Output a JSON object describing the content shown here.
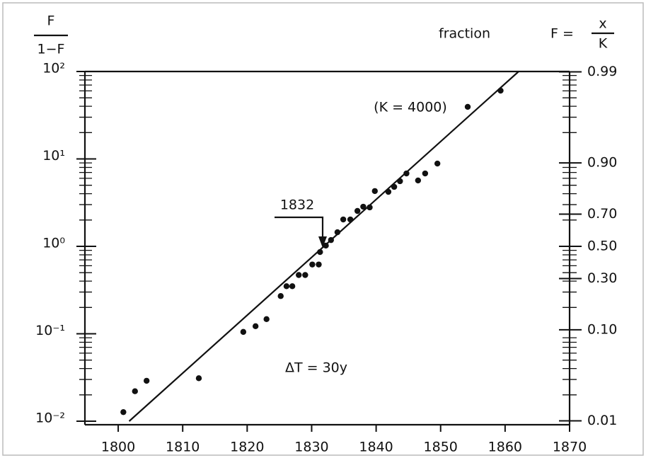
{
  "chart_data": {
    "type": "scatter",
    "y_label": {
      "numerator": "F",
      "denominator": "1−F"
    },
    "y2_label": {
      "text": "fraction",
      "formula": "F =",
      "numerator": "x",
      "denominator": "K"
    },
    "annotations": {
      "k": "(K = 4000)",
      "year": "1832",
      "dt": "ΔT = 30y"
    },
    "x": [
      1800.8,
      1802.6,
      1804.4,
      1812.5,
      1819.4,
      1821.3,
      1823.0,
      1825.2,
      1826.1,
      1827.0,
      1828.0,
      1829.0,
      1830.1,
      1831.1,
      1831.3,
      1832.2,
      1833.0,
      1834.0,
      1834.9,
      1836.0,
      1837.1,
      1838.0,
      1839.0,
      1839.8,
      1841.9,
      1842.8,
      1843.7,
      1844.7,
      1846.5,
      1847.6,
      1849.5,
      1854.2,
      1859.3
    ],
    "values": [
      0.0127,
      0.022,
      0.029,
      0.031,
      0.105,
      0.122,
      0.147,
      0.27,
      0.35,
      0.35,
      0.47,
      0.47,
      0.62,
      0.62,
      0.86,
      1.02,
      1.18,
      1.45,
      2.03,
      2.03,
      2.54,
      2.84,
      2.79,
      4.29,
      4.2,
      4.79,
      5.56,
      6.82,
      5.67,
      6.82,
      8.85,
      39.4,
      60.4
    ],
    "color": "#111111",
    "fit": {
      "x": [
        1801.7,
        1862.1
      ],
      "values": [
        0.01,
        100
      ]
    },
    "xlim": [
      1795,
      1870
    ],
    "xticks": [
      1800,
      1810,
      1820,
      1830,
      1840,
      1850,
      1860,
      1870
    ],
    "ylim": [
      0.01,
      100
    ],
    "log_y": true,
    "yticks": [
      {
        "value": 0.01,
        "label": "10⁻²"
      },
      {
        "value": 0.1,
        "label": "10⁻¹"
      },
      {
        "value": 1,
        "label": "10⁰"
      },
      {
        "value": 10,
        "label": "10¹"
      },
      {
        "value": 100,
        "label": "10²"
      }
    ],
    "yminorticks": [
      0.02,
      0.03,
      0.04,
      0.05,
      0.06,
      0.07,
      0.08,
      0.09,
      0.2,
      0.3,
      0.4,
      0.5,
      0.6,
      0.7,
      0.8,
      0.9,
      2,
      3,
      4,
      5,
      6,
      7,
      8,
      9,
      20,
      30,
      40,
      50,
      60,
      70,
      80,
      90
    ],
    "y2ticks": [
      {
        "value": 0.01,
        "label": "0.01"
      },
      {
        "value": 0.1,
        "label": "0.10"
      },
      {
        "value": 0.3,
        "label": "0.30"
      },
      {
        "value": 0.5,
        "label": "0.50"
      },
      {
        "value": 0.7,
        "label": "0.70"
      },
      {
        "value": 0.9,
        "label": "0.90"
      },
      {
        "value": 0.99,
        "label": "0.99"
      }
    ]
  }
}
